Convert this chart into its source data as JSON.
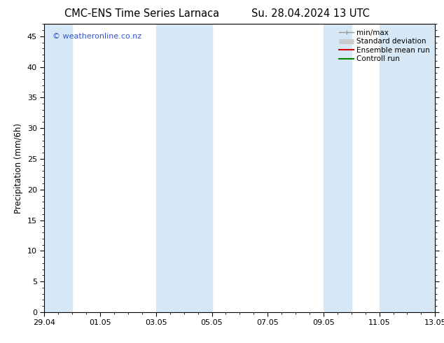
{
  "title_left": "CMC-ENS Time Series Larnaca",
  "title_right": "Su. 28.04.2024 13 UTC",
  "ylabel": "Precipitation (mm/6h)",
  "ylim": [
    0,
    47
  ],
  "yticks": [
    0,
    5,
    10,
    15,
    20,
    25,
    30,
    35,
    40,
    45
  ],
  "xlim": [
    0,
    14
  ],
  "xtick_positions": [
    0,
    2,
    4,
    6,
    8,
    10,
    12,
    14
  ],
  "xtick_labels": [
    "29.04",
    "01.05",
    "03.05",
    "05.05",
    "07.05",
    "09.05",
    "11.05",
    "13.05"
  ],
  "shaded_regions": [
    [
      0,
      1.0
    ],
    [
      4.0,
      6.0
    ],
    [
      10.0,
      11.0
    ],
    [
      12.0,
      14.0
    ]
  ],
  "shade_color": "#d6e8f5",
  "watermark": "© weatheronline.co.nz",
  "watermark_color": "#3355cc",
  "legend_entries": [
    "min/max",
    "Standard deviation",
    "Ensemble mean run",
    "Controll run"
  ],
  "legend_line_colors": [
    "#999999",
    "#cccccc",
    "#dd0000",
    "#008800"
  ],
  "background_color": "#ffffff",
  "plot_bg_color": "#ffffff",
  "title_fontsize": 10.5,
  "ylabel_fontsize": 8.5,
  "tick_fontsize": 8,
  "legend_fontsize": 7.5,
  "watermark_fontsize": 8
}
